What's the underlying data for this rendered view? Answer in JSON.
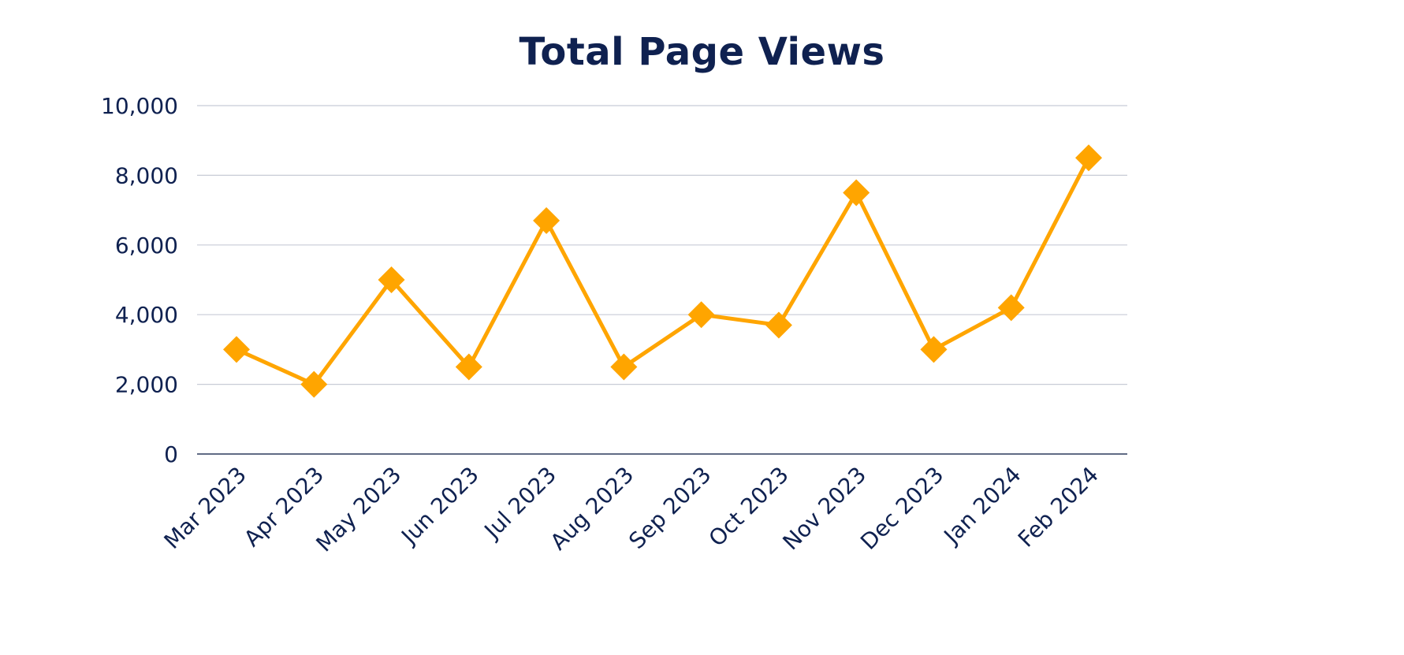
{
  "chart_data": {
    "type": "line",
    "title": "Total Page Views",
    "xlabel": "",
    "ylabel": "",
    "categories": [
      "Mar 2023",
      "Apr 2023",
      "May 2023",
      "Jun 2023",
      "Jul 2023",
      "Aug 2023",
      "Sep 2023",
      "Oct 2023",
      "Nov 2023",
      "Dec 2023",
      "Jan 2024",
      "Feb 2024"
    ],
    "series": [
      {
        "values": [
          3000,
          2000,
          5000,
          2500,
          6700,
          2500,
          4000,
          3700,
          7500,
          3000,
          4200,
          8500
        ]
      }
    ],
    "ylim": [
      0,
      10000
    ],
    "yticks": [
      "0",
      "2,000",
      "4,000",
      "6,000",
      "8,000",
      "10,000"
    ],
    "ytick_values": [
      0,
      2000,
      4000,
      6000,
      8000,
      10000
    ],
    "grid": true,
    "marker": "diamond",
    "colors": {
      "line": "#FFA500",
      "text": "#0f2150",
      "grid": "#c8ccd6",
      "axis": "#2b3a5c"
    }
  }
}
